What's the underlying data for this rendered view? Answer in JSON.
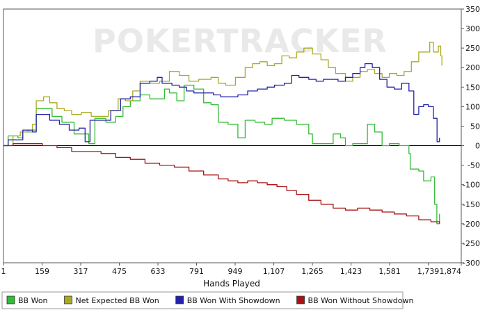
{
  "chart_data": {
    "type": "line",
    "title": "",
    "watermark": "POKERTRACKER",
    "xlabel": "Hands Played",
    "ylabel": "",
    "xlim": [
      1,
      1874
    ],
    "ylim": [
      -300,
      350
    ],
    "x_ticks": [
      1,
      159,
      317,
      475,
      633,
      791,
      949,
      1107,
      1265,
      1423,
      1581,
      1739,
      1874
    ],
    "x_tick_labels": [
      "1",
      "159",
      "317",
      "475",
      "633",
      "791",
      "949",
      "1,107",
      "1,265",
      "1,423",
      "1,581",
      "1,739",
      "1,874"
    ],
    "y_ticks": [
      -300,
      -250,
      -200,
      -150,
      -100,
      -50,
      0,
      50,
      100,
      150,
      200,
      250,
      300,
      350
    ],
    "y_axis_side": "right",
    "grid": false,
    "zero_line": true,
    "legend_position": "bottom",
    "series": [
      {
        "name": "BB Won",
        "color": "#33bb33",
        "points": [
          [
            1,
            0
          ],
          [
            20,
            25
          ],
          [
            60,
            20
          ],
          [
            80,
            35
          ],
          [
            120,
            40
          ],
          [
            135,
            95
          ],
          [
            160,
            95
          ],
          [
            200,
            75
          ],
          [
            240,
            60
          ],
          [
            290,
            30
          ],
          [
            330,
            30
          ],
          [
            350,
            5
          ],
          [
            375,
            70
          ],
          [
            420,
            60
          ],
          [
            460,
            75
          ],
          [
            490,
            100
          ],
          [
            520,
            115
          ],
          [
            560,
            130
          ],
          [
            600,
            120
          ],
          [
            660,
            145
          ],
          [
            680,
            135
          ],
          [
            710,
            115
          ],
          [
            740,
            155
          ],
          [
            780,
            145
          ],
          [
            820,
            110
          ],
          [
            850,
            105
          ],
          [
            880,
            60
          ],
          [
            920,
            55
          ],
          [
            960,
            20
          ],
          [
            990,
            65
          ],
          [
            1030,
            60
          ],
          [
            1070,
            55
          ],
          [
            1100,
            70
          ],
          [
            1150,
            65
          ],
          [
            1200,
            55
          ],
          [
            1250,
            30
          ],
          [
            1265,
            5
          ],
          [
            1310,
            5
          ],
          [
            1350,
            30
          ],
          [
            1380,
            20
          ],
          [
            1400,
            0
          ],
          [
            1430,
            5
          ],
          [
            1460,
            5
          ],
          [
            1490,
            55
          ],
          [
            1520,
            35
          ],
          [
            1550,
            0
          ],
          [
            1580,
            5
          ],
          [
            1620,
            0
          ],
          [
            1650,
            0
          ],
          [
            1660,
            -20
          ],
          [
            1665,
            -60
          ],
          [
            1700,
            -65
          ],
          [
            1720,
            -90
          ],
          [
            1750,
            -80
          ],
          [
            1765,
            -150
          ],
          [
            1774,
            -200
          ],
          [
            1785,
            -175
          ]
        ]
      },
      {
        "name": "Net Expected BB Won",
        "color": "#aaaa22",
        "points": [
          [
            1,
            0
          ],
          [
            40,
            25
          ],
          [
            70,
            35
          ],
          [
            100,
            40
          ],
          [
            120,
            55
          ],
          [
            135,
            115
          ],
          [
            165,
            125
          ],
          [
            190,
            110
          ],
          [
            220,
            95
          ],
          [
            250,
            90
          ],
          [
            280,
            80
          ],
          [
            320,
            85
          ],
          [
            360,
            75
          ],
          [
            400,
            75
          ],
          [
            430,
            90
          ],
          [
            470,
            120
          ],
          [
            500,
            115
          ],
          [
            530,
            140
          ],
          [
            560,
            165
          ],
          [
            600,
            160
          ],
          [
            640,
            165
          ],
          [
            680,
            190
          ],
          [
            720,
            180
          ],
          [
            760,
            165
          ],
          [
            800,
            170
          ],
          [
            850,
            175
          ],
          [
            880,
            160
          ],
          [
            910,
            155
          ],
          [
            950,
            175
          ],
          [
            990,
            200
          ],
          [
            1020,
            210
          ],
          [
            1050,
            215
          ],
          [
            1080,
            205
          ],
          [
            1110,
            210
          ],
          [
            1140,
            230
          ],
          [
            1170,
            225
          ],
          [
            1200,
            240
          ],
          [
            1230,
            250
          ],
          [
            1265,
            235
          ],
          [
            1300,
            220
          ],
          [
            1330,
            200
          ],
          [
            1360,
            185
          ],
          [
            1400,
            165
          ],
          [
            1430,
            175
          ],
          [
            1460,
            190
          ],
          [
            1490,
            195
          ],
          [
            1520,
            185
          ],
          [
            1550,
            175
          ],
          [
            1580,
            185
          ],
          [
            1610,
            180
          ],
          [
            1640,
            190
          ],
          [
            1670,
            215
          ],
          [
            1700,
            240
          ],
          [
            1730,
            240
          ],
          [
            1745,
            265
          ],
          [
            1760,
            240
          ],
          [
            1780,
            255
          ],
          [
            1790,
            230
          ],
          [
            1795,
            205
          ]
        ]
      },
      {
        "name": "BB Won With Showdown",
        "color": "#2222aa",
        "points": [
          [
            1,
            0
          ],
          [
            20,
            15
          ],
          [
            60,
            15
          ],
          [
            80,
            40
          ],
          [
            120,
            35
          ],
          [
            135,
            80
          ],
          [
            170,
            80
          ],
          [
            190,
            65
          ],
          [
            230,
            55
          ],
          [
            270,
            40
          ],
          [
            310,
            45
          ],
          [
            335,
            10
          ],
          [
            355,
            65
          ],
          [
            400,
            65
          ],
          [
            440,
            90
          ],
          [
            480,
            120
          ],
          [
            520,
            125
          ],
          [
            560,
            160
          ],
          [
            600,
            165
          ],
          [
            630,
            175
          ],
          [
            650,
            160
          ],
          [
            690,
            155
          ],
          [
            720,
            150
          ],
          [
            750,
            140
          ],
          [
            780,
            135
          ],
          [
            820,
            135
          ],
          [
            860,
            130
          ],
          [
            890,
            125
          ],
          [
            920,
            125
          ],
          [
            960,
            130
          ],
          [
            1000,
            140
          ],
          [
            1040,
            145
          ],
          [
            1080,
            150
          ],
          [
            1110,
            155
          ],
          [
            1150,
            160
          ],
          [
            1180,
            180
          ],
          [
            1210,
            175
          ],
          [
            1250,
            170
          ],
          [
            1280,
            165
          ],
          [
            1310,
            170
          ],
          [
            1340,
            170
          ],
          [
            1370,
            165
          ],
          [
            1400,
            175
          ],
          [
            1430,
            185
          ],
          [
            1460,
            200
          ],
          [
            1480,
            210
          ],
          [
            1510,
            200
          ],
          [
            1540,
            170
          ],
          [
            1570,
            150
          ],
          [
            1600,
            145
          ],
          [
            1630,
            160
          ],
          [
            1660,
            140
          ],
          [
            1680,
            80
          ],
          [
            1700,
            100
          ],
          [
            1720,
            105
          ],
          [
            1740,
            100
          ],
          [
            1760,
            70
          ],
          [
            1775,
            10
          ],
          [
            1785,
            20
          ]
        ]
      },
      {
        "name": "BB Won Without Showdown",
        "color": "#aa1111",
        "points": [
          [
            1,
            0
          ],
          [
            40,
            5
          ],
          [
            100,
            5
          ],
          [
            160,
            0
          ],
          [
            220,
            -5
          ],
          [
            280,
            -15
          ],
          [
            340,
            -15
          ],
          [
            400,
            -20
          ],
          [
            460,
            -30
          ],
          [
            520,
            -35
          ],
          [
            580,
            -45
          ],
          [
            640,
            -50
          ],
          [
            700,
            -55
          ],
          [
            760,
            -65
          ],
          [
            820,
            -75
          ],
          [
            880,
            -85
          ],
          [
            920,
            -90
          ],
          [
            960,
            -95
          ],
          [
            1000,
            -90
          ],
          [
            1040,
            -95
          ],
          [
            1080,
            -100
          ],
          [
            1120,
            -105
          ],
          [
            1160,
            -115
          ],
          [
            1200,
            -125
          ],
          [
            1250,
            -140
          ],
          [
            1300,
            -150
          ],
          [
            1350,
            -160
          ],
          [
            1400,
            -165
          ],
          [
            1450,
            -160
          ],
          [
            1500,
            -165
          ],
          [
            1550,
            -170
          ],
          [
            1600,
            -175
          ],
          [
            1650,
            -180
          ],
          [
            1700,
            -190
          ],
          [
            1750,
            -195
          ],
          [
            1785,
            -200
          ]
        ]
      }
    ]
  }
}
